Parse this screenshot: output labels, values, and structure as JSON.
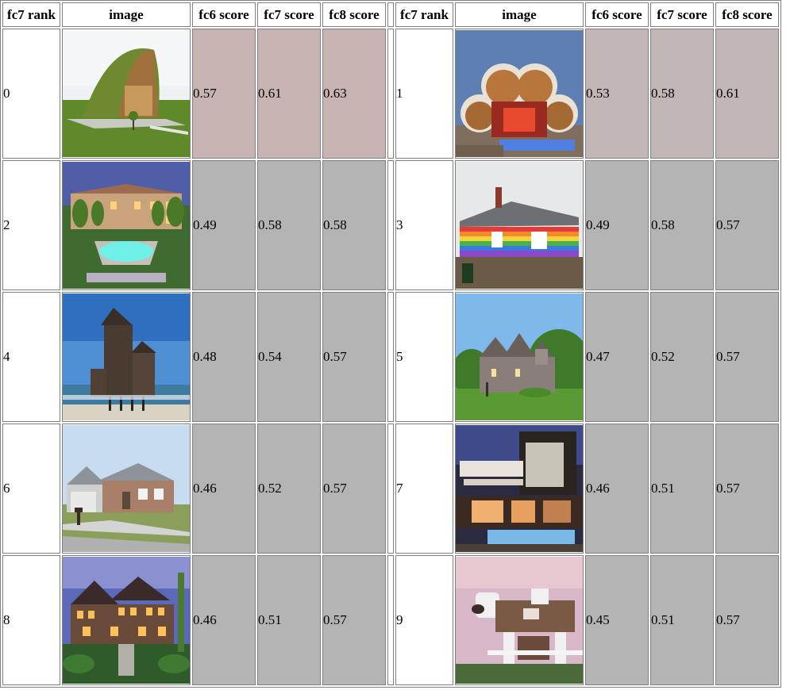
{
  "headers": {
    "left": [
      "fc7 rank",
      "image",
      "fc6 score",
      "fc7 score",
      "fc8 score"
    ],
    "right": [
      "fc7 rank",
      "image",
      "fc6 score",
      "fc7 score",
      "fc8 score"
    ]
  },
  "rows": [
    {
      "left": {
        "rank": "0",
        "fc6": "0.57",
        "fc7": "0.61",
        "fc8": "0.63",
        "image": "green-roof-arched-house"
      },
      "right": {
        "rank": "1",
        "fc6": "0.53",
        "fc7": "0.58",
        "fc8": "0.61",
        "image": "cloud-shaped-house-with-pool"
      }
    },
    {
      "left": {
        "rank": "2",
        "fc6": "0.49",
        "fc7": "0.58",
        "fc8": "0.58",
        "image": "mansion-with-pool-at-dusk"
      },
      "right": {
        "rank": "3",
        "fc6": "0.49",
        "fc7": "0.58",
        "fc8": "0.57",
        "image": "rainbow-striped-house"
      }
    },
    {
      "left": {
        "rank": "4",
        "fc6": "0.48",
        "fc7": "0.54",
        "fc8": "0.57",
        "image": "beach-house-on-stilts"
      },
      "right": {
        "rank": "5",
        "fc6": "0.47",
        "fc7": "0.52",
        "fc8": "0.57",
        "image": "stone-castle-house"
      }
    },
    {
      "left": {
        "rank": "6",
        "fc6": "0.46",
        "fc7": "0.52",
        "fc8": "0.57",
        "image": "suburban-brick-house"
      },
      "right": {
        "rank": "7",
        "fc6": "0.46",
        "fc7": "0.51",
        "fc8": "0.57",
        "image": "modern-house-with-pool"
      }
    },
    {
      "left": {
        "rank": "8",
        "fc6": "0.46",
        "fc7": "0.51",
        "fc8": "0.57",
        "image": "lit-timber-mansion"
      },
      "right": {
        "rank": "9",
        "fc6": "0.45",
        "fc7": "0.51",
        "fc8": "0.57",
        "image": "dog-shaped-house"
      }
    }
  ],
  "colors": {
    "highlight_left": "#c8b3b3",
    "highlight_right": "#c3b6b6",
    "normal": "#b4b4b4"
  }
}
